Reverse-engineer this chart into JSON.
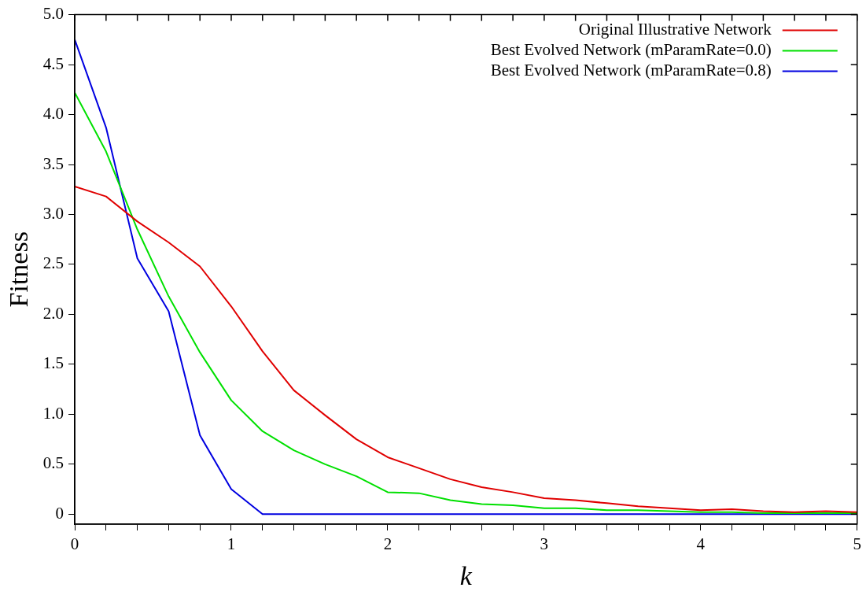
{
  "chart_data": {
    "type": "line",
    "xlabel": "k",
    "ylabel": "Fitness",
    "x": [
      0,
      0.2,
      0.4,
      0.6,
      0.8,
      1.0,
      1.2,
      1.4,
      1.6,
      1.8,
      2.0,
      2.2,
      2.4,
      2.6,
      2.8,
      3.0,
      3.2,
      3.4,
      3.6,
      3.8,
      4.0,
      4.2,
      4.4,
      4.6,
      4.8,
      5.0
    ],
    "series": [
      {
        "name": "Original Illustrative Network",
        "color": "#e00000",
        "values": [
          3.28,
          3.18,
          2.93,
          2.72,
          2.48,
          2.08,
          1.63,
          1.24,
          0.99,
          0.75,
          0.57,
          0.46,
          0.35,
          0.27,
          0.22,
          0.16,
          0.14,
          0.11,
          0.08,
          0.06,
          0.04,
          0.05,
          0.03,
          0.02,
          0.03,
          0.02
        ]
      },
      {
        "name": "Best Evolved Network (mParamRate=0.0)",
        "color": "#00e000",
        "values": [
          4.22,
          3.63,
          2.85,
          2.18,
          1.62,
          1.14,
          0.83,
          0.64,
          0.5,
          0.38,
          0.22,
          0.21,
          0.14,
          0.1,
          0.09,
          0.06,
          0.06,
          0.04,
          0.04,
          0.03,
          0.02,
          0.02,
          0.01,
          0.01,
          0.01,
          0.01
        ]
      },
      {
        "name": "Best Evolved Network (mParamRate=0.8)",
        "color": "#0000e0",
        "values": [
          4.75,
          3.87,
          2.56,
          2.03,
          0.79,
          0.25,
          0,
          0,
          0,
          0,
          0,
          0,
          0,
          0,
          0,
          0,
          0,
          0,
          0,
          0,
          0,
          0,
          0,
          0,
          0,
          0
        ]
      }
    ],
    "xlim": [
      0,
      5
    ],
    "xticks": [
      0,
      {
        "value": 0.2,
        "label": null
      },
      {
        "value": 0.4,
        "label": null
      },
      {
        "value": 0.6,
        "label": null
      },
      {
        "value": 0.8,
        "label": null
      },
      1,
      {
        "value": 1.2,
        "label": null
      },
      {
        "value": 1.4,
        "label": null
      },
      {
        "value": 1.6,
        "label": null
      },
      {
        "value": 1.8,
        "label": null
      },
      2,
      {
        "value": 2.2,
        "label": null
      },
      {
        "value": 2.4,
        "label": null
      },
      {
        "value": 2.6,
        "label": null
      },
      {
        "value": 2.8,
        "label": null
      },
      3,
      {
        "value": 3.2,
        "label": null
      },
      {
        "value": 3.4,
        "label": null
      },
      {
        "value": 3.6,
        "label": null
      },
      {
        "value": 3.8,
        "label": null
      },
      4,
      {
        "value": 4.2,
        "label": null
      },
      {
        "value": 4.4,
        "label": null
      },
      {
        "value": 4.6,
        "label": null
      },
      {
        "value": 4.8,
        "label": null
      },
      5
    ],
    "ylim": [
      -0.1,
      5.0
    ],
    "yticks": [
      0,
      0.5,
      {
        "value": 1,
        "label": "1.0"
      },
      1.5,
      {
        "value": 2,
        "label": "2.0"
      },
      2.5,
      {
        "value": 3,
        "label": "3.0"
      },
      3.5,
      {
        "value": 4,
        "label": "4.0"
      },
      4.5,
      {
        "value": 5,
        "label": "5.0"
      }
    ],
    "grid": false,
    "legend": "top right",
    "marker": "none",
    "line_style": "solid"
  }
}
